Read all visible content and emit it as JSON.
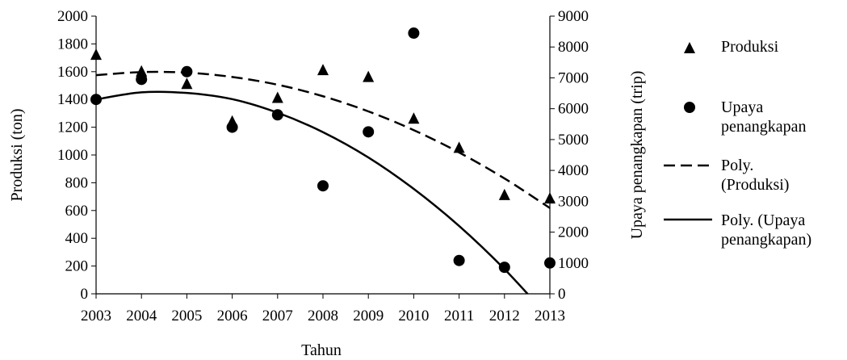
{
  "chart_data": {
    "type": "scatter",
    "title": "",
    "xlabel": "Tahun",
    "ylabel": "Produksi (ton)",
    "y2label": "Upaya penangkapan  (trip)",
    "x": [
      2003,
      2004,
      2005,
      2006,
      2007,
      2008,
      2009,
      2010,
      2011,
      2012,
      2013
    ],
    "xlim": [
      2003,
      2013
    ],
    "ylim": [
      0,
      2000
    ],
    "y2lim": [
      0,
      9000
    ],
    "yticks": [
      0,
      200,
      400,
      600,
      800,
      1000,
      1200,
      1400,
      1600,
      1800,
      2000
    ],
    "y2ticks": [
      0,
      1000,
      2000,
      3000,
      4000,
      5000,
      6000,
      7000,
      8000,
      9000
    ],
    "grid": false,
    "legend_position": "right",
    "series": [
      {
        "name": "Produksi",
        "axis": "left",
        "marker": "triangle",
        "values": [
          1720,
          1600,
          1510,
          1240,
          1410,
          1610,
          1560,
          1260,
          1050,
          710,
          685
        ]
      },
      {
        "name": "Upaya penangkapan",
        "axis": "right",
        "marker": "circle",
        "values": [
          6300,
          6950,
          7200,
          5400,
          5800,
          3500,
          5250,
          8450,
          1080,
          860,
          1000
        ]
      }
    ],
    "trendlines": [
      {
        "name": "Poly. (Produksi)",
        "of": "Produksi",
        "axis": "left",
        "style": "dashed",
        "values": [
          1575,
          1597,
          1593,
          1562,
          1506,
          1423,
          1314,
          1179,
          1018,
          831,
          618
        ]
      },
      {
        "name": "Poly. (Upaya penangkapan)",
        "of": "Upaya penangkapan",
        "axis": "right",
        "style": "solid",
        "values": [
          6300,
          6530,
          6510,
          6310,
          5870,
          5240,
          4420,
          3400,
          2200,
          800,
          -800
        ]
      }
    ],
    "legend": [
      {
        "type": "triangle",
        "text": "Produksi"
      },
      {
        "type": "circle",
        "text": "Upaya penangkapan"
      },
      {
        "type": "dashed",
        "text": "Poly. (Produksi)"
      },
      {
        "type": "solid",
        "text": "Poly. (Upaya penangkapan)"
      }
    ]
  }
}
